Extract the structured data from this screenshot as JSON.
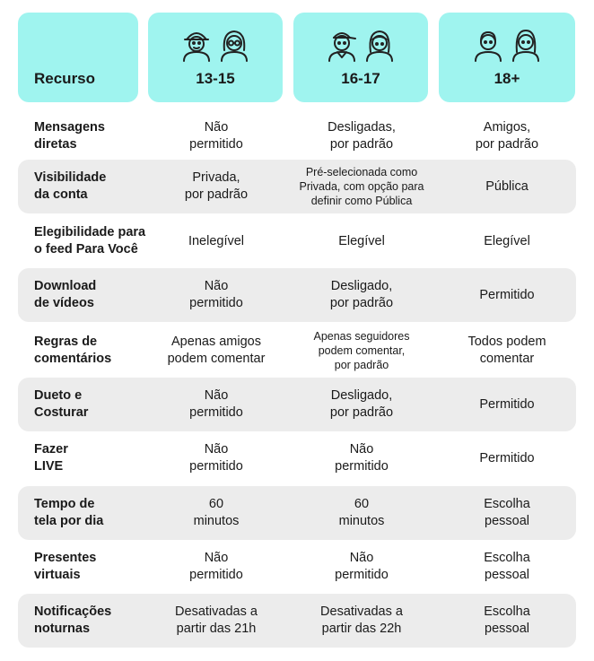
{
  "header": {
    "label": "Recurso",
    "ages": [
      "13-15",
      "16-17",
      "18+"
    ],
    "header_color": "#9ff4ef",
    "row_shade_color": "#ececec",
    "icons": [
      "teen-boy-cap-icon",
      "teen-girl-glasses-icon",
      "boy-cap-icon",
      "girl-headband-icon",
      "adult-man-icon",
      "adult-woman-icon"
    ]
  },
  "rows": [
    {
      "feature": "Mensagens\ndiretas",
      "c1": "Não\npermitido",
      "c2": "Desligadas,\npor padrão",
      "c3": "Amigos,\npor padrão"
    },
    {
      "feature": "Visibilidade\nda conta",
      "c1": "Privada,\npor padrão",
      "c2": "Pré-selecionada como\nPrivada, com opção para\ndefinir como Pública",
      "c3": "Pública"
    },
    {
      "feature": "Elegibilidade para\no feed Para Você",
      "c1": "Inelegível",
      "c2": "Elegível",
      "c3": "Elegível"
    },
    {
      "feature": "Download\nde vídeos",
      "c1": "Não\npermitido",
      "c2": "Desligado,\npor padrão",
      "c3": "Permitido"
    },
    {
      "feature": "Regras de\ncomentários",
      "c1": "Apenas amigos\npodem comentar",
      "c2": "Apenas seguidores\npodem comentar,\npor padrão",
      "c3": "Todos podem\ncomentar"
    },
    {
      "feature": "Dueto e\nCosturar",
      "c1": "Não\npermitido",
      "c2": "Desligado,\npor padrão",
      "c3": "Permitido"
    },
    {
      "feature": "Fazer\nLIVE",
      "c1": "Não\npermitido",
      "c2": "Não\npermitido",
      "c3": "Permitido"
    },
    {
      "feature": "Tempo de\ntela por dia",
      "c1": "60\nminutos",
      "c2": "60\nminutos",
      "c3": "Escolha\npessoal"
    },
    {
      "feature": "Presentes\nvirtuais",
      "c1": "Não\npermitido",
      "c2": "Não\npermitido",
      "c3": "Escolha\npessoal"
    },
    {
      "feature": "Notificações\nnoturnas",
      "c1": "Desativadas a\npartir das 21h",
      "c2": "Desativadas a\npartir das 22h",
      "c3": "Escolha\npessoal"
    }
  ]
}
